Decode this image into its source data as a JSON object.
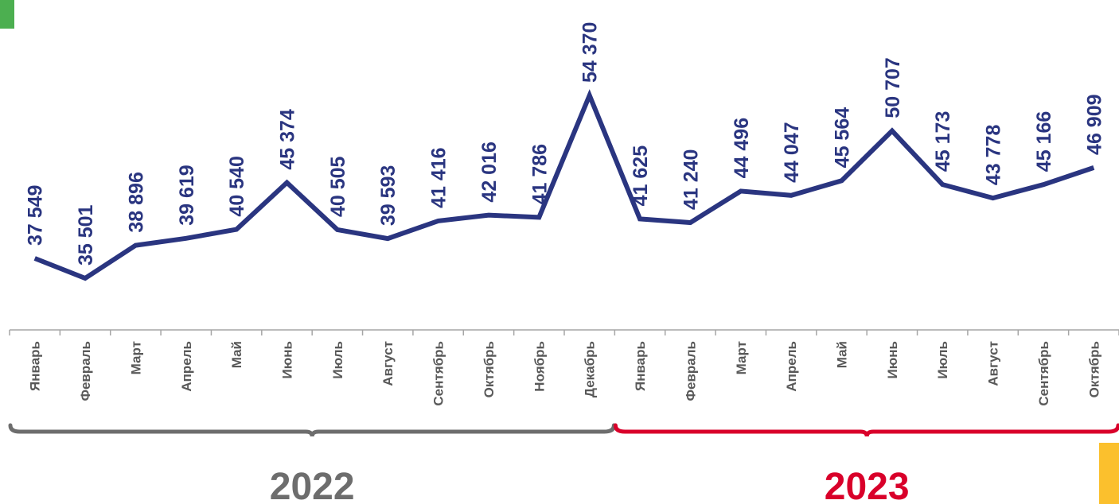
{
  "chart_data": {
    "type": "line",
    "title": "",
    "xlabel": "",
    "ylabel": "",
    "ylim": [
      30000,
      56000
    ],
    "grid": false,
    "legend": "none",
    "series_color": "#2a3580",
    "categories": [
      "Январь",
      "Февраль",
      "Март",
      "Апрель",
      "Май",
      "Июнь",
      "Июль",
      "Август",
      "Сентябрь",
      "Октябрь",
      "Ноябрь",
      "Декабрь",
      "Январь",
      "Февраль",
      "Март",
      "Апрель",
      "Май",
      "Июнь",
      "Июль",
      "Август",
      "Сентябрь",
      "Октябрь"
    ],
    "values": [
      37549,
      35501,
      38896,
      39619,
      40540,
      45374,
      40505,
      39593,
      41416,
      42016,
      41786,
      54370,
      41625,
      41240,
      44496,
      44047,
      45564,
      50707,
      45173,
      43778,
      45166,
      46909
    ],
    "value_labels": [
      "37 549",
      "35 501",
      "38 896",
      "39 619",
      "40 540",
      "45 374",
      "40 505",
      "39 593",
      "41 416",
      "42 016",
      "41 786",
      "54 370",
      "41 625",
      "41 240",
      "44 496",
      "44 047",
      "45 564",
      "50 707",
      "45 173",
      "43 778",
      "45 166",
      "46 909"
    ],
    "year_groups": [
      {
        "label": "2022",
        "start": 0,
        "end": 11,
        "color": "#6d6d6d"
      },
      {
        "label": "2023",
        "start": 12,
        "end": 21,
        "color": "#d9002a"
      }
    ]
  },
  "decor": {
    "corner_marker_color": "#4caf50",
    "side_bar_color": "#fbc02d"
  }
}
